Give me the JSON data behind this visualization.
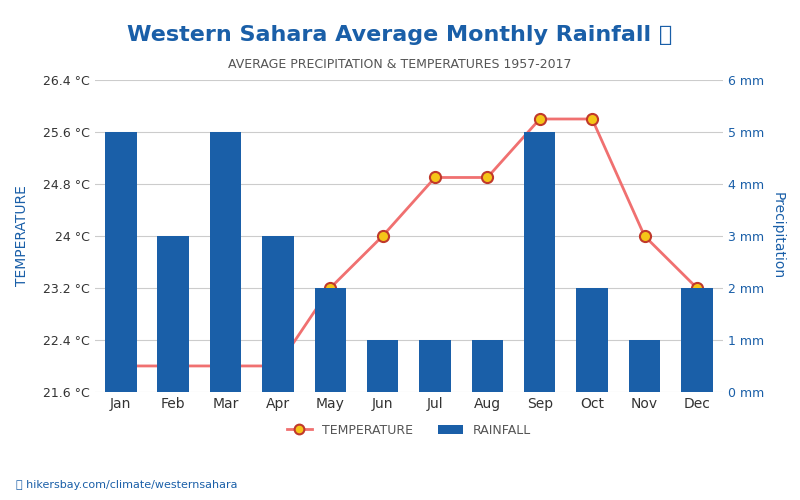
{
  "title": "Western Sahara Average Monthly Rainfall 🌧",
  "subtitle": "AVERAGE PRECIPITATION & TEMPERATURES 1957-2017",
  "months": [
    "Jan",
    "Feb",
    "Mar",
    "Apr",
    "May",
    "Jun",
    "Jul",
    "Aug",
    "Sep",
    "Oct",
    "Nov",
    "Dec"
  ],
  "rainfall_mm": [
    5,
    3,
    5,
    3,
    2,
    1,
    1,
    1,
    5,
    2,
    1,
    2
  ],
  "temperature_c": [
    22.0,
    22.0,
    22.0,
    22.0,
    23.2,
    24.0,
    24.9,
    24.9,
    25.8,
    25.8,
    24.0,
    23.2
  ],
  "bar_color": "#1a5fa8",
  "line_color": "#f07070",
  "marker_face": "#f5c518",
  "marker_edge": "#c0392b",
  "temp_ylim": [
    21.6,
    26.4
  ],
  "temp_yticks": [
    21.6,
    22.4,
    23.2,
    24.0,
    24.8,
    25.6,
    26.4
  ],
  "rain_ylim": [
    0,
    6
  ],
  "rain_yticks": [
    0,
    1,
    2,
    3,
    4,
    5,
    6
  ],
  "temp_ytick_labels": [
    "21.6 °C",
    "22.4 °C",
    "23.2 °C",
    "24 °C",
    "24.8 °C",
    "25.6 °C",
    "26.4 °C"
  ],
  "rain_ytick_labels": [
    "0 mm",
    "1 mm",
    "2 mm",
    "3 mm",
    "4 mm",
    "5 mm",
    "6 mm"
  ],
  "xlabel_color": "#1a5fa8",
  "ylabel_left": "TEMPERATURE",
  "ylabel_right": "Precipitation",
  "watermark": "hikersbay.com/climate/westernsahara",
  "title_color": "#1a5fa8",
  "subtitle_color": "#555555",
  "axis_label_color": "#1a5fa8"
}
